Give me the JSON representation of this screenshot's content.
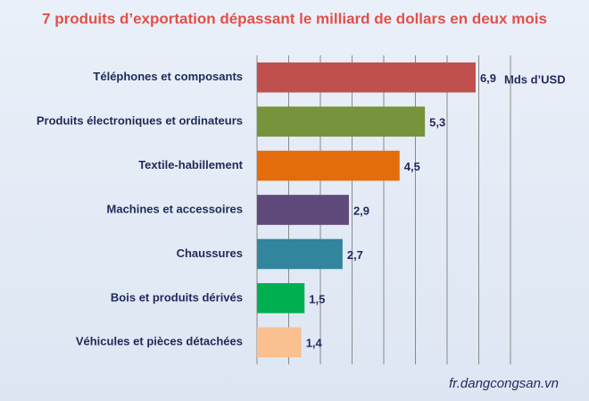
{
  "chart_data": {
    "type": "barh",
    "title": "7 produits d’exportation dépassant le milliard de dollars en deux mois",
    "unit_label": "Mds d’USD",
    "source": "fr.dangcongsan.vn",
    "categories": [
      "Téléphones et composants",
      "Produits électroniques et ordinateurs",
      "Textile-habillement",
      "Machines et accessoires",
      "Chaussures",
      "Bois et produits dérivés",
      "Véhicules et pièces détachées"
    ],
    "values": [
      6.9,
      5.3,
      4.5,
      2.9,
      2.7,
      1.5,
      1.4
    ],
    "value_labels": [
      "6,9",
      "5,3",
      "4,5",
      "2,9",
      "2,7",
      "1,5",
      "1,4"
    ],
    "colors": [
      "#c0504d",
      "#77933c",
      "#e46c0a",
      "#604a7b",
      "#31859c",
      "#00b050",
      "#fac090"
    ],
    "xlim": [
      0,
      8
    ],
    "xticks": [
      0,
      1,
      2,
      3,
      4,
      5,
      6,
      7,
      8
    ],
    "grid": true
  }
}
